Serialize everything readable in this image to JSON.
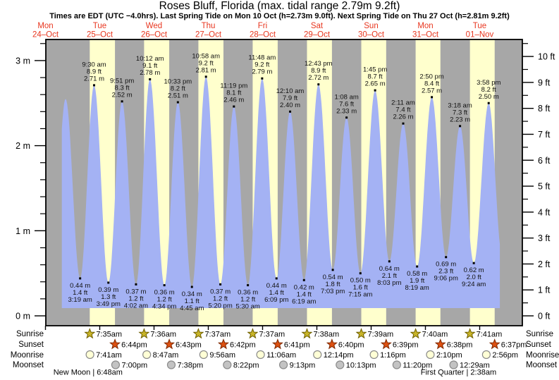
{
  "title": "Roses Bluff, Florida (max. tidal range 2.79m 9.2ft)",
  "subtitle": "Times are EDT (UTC −4.0hrs). Last Spring Tide on Mon 10 Oct (h=2.73m 9.0ft). Next Spring Tide on Thu 27 Oct (h=2.81m 9.2ft)",
  "days": [
    {
      "weekday": "Mon",
      "date": "24–Oct"
    },
    {
      "weekday": "Tue",
      "date": "25–Oct"
    },
    {
      "weekday": "Wed",
      "date": "26–Oct"
    },
    {
      "weekday": "Thu",
      "date": "27–Oct"
    },
    {
      "weekday": "Fri",
      "date": "28–Oct"
    },
    {
      "weekday": "Sat",
      "date": "29–Oct"
    },
    {
      "weekday": "Sun",
      "date": "30–Oct"
    },
    {
      "weekday": "Mon",
      "date": "31–Oct"
    },
    {
      "weekday": "Tue",
      "date": "01–Nov"
    }
  ],
  "chart_data": {
    "type": "area",
    "x_unit": "hours since Mon 24-Oct 00:00 EDT",
    "y_axis_left_labels": [
      "0 m",
      "1 m",
      "2 m",
      "3 m"
    ],
    "y_axis_right_labels": [
      "0 ft",
      "1 ft",
      "2 ft",
      "3 ft",
      "4 ft",
      "5 ft",
      "6 ft",
      "7 ft",
      "8 ft",
      "9 ft",
      "10 ft"
    ],
    "ylim_m": [
      -0.12,
      3.25
    ],
    "high_tides": [
      {
        "time": "9:30 am",
        "ft": "8.9 ft",
        "m_label": "2.71 m",
        "m": 2.71,
        "t": 33.5
      },
      {
        "time": "9:51 pm",
        "ft": "8.3 ft",
        "m_label": "2.52 m",
        "m": 2.52,
        "t": 45.85
      },
      {
        "time": "10:12 am",
        "ft": "9.1 ft",
        "m_label": "2.78 m",
        "m": 2.78,
        "t": 58.2
      },
      {
        "time": "10:33 pm",
        "ft": "8.2 ft",
        "m_label": "2.51 m",
        "m": 2.51,
        "t": 70.55
      },
      {
        "time": "10:58 am",
        "ft": "9.2 ft",
        "m_label": "2.81 m",
        "m": 2.81,
        "t": 82.97
      },
      {
        "time": "11:19 pm",
        "ft": "8.1 ft",
        "m_label": "2.46 m",
        "m": 2.46,
        "t": 95.32
      },
      {
        "time": "11:48 am",
        "ft": "9.2 ft",
        "m_label": "2.79 m",
        "m": 2.79,
        "t": 107.8
      },
      {
        "time": "12:10 am",
        "ft": "7.9 ft",
        "m_label": "2.40 m",
        "m": 2.4,
        "t": 120.17
      },
      {
        "time": "12:43 pm",
        "ft": "8.9 ft",
        "m_label": "2.72 m",
        "m": 2.72,
        "t": 132.72
      },
      {
        "time": "1:08 am",
        "ft": "7.6 ft",
        "m_label": "2.33 m",
        "m": 2.33,
        "t": 145.13
      },
      {
        "time": "1:45 pm",
        "ft": "8.7 ft",
        "m_label": "2.65 m",
        "m": 2.65,
        "t": 157.75
      },
      {
        "time": "2:11 am",
        "ft": "7.4 ft",
        "m_label": "2.26 m",
        "m": 2.26,
        "t": 170.18
      },
      {
        "time": "2:50 pm",
        "ft": "8.4 ft",
        "m_label": "2.57 m",
        "m": 2.57,
        "t": 182.83
      },
      {
        "time": "3:18 am",
        "ft": "7.3 ft",
        "m_label": "2.23 m",
        "m": 2.23,
        "t": 195.3
      },
      {
        "time": "3:58 pm",
        "ft": "8.2 ft",
        "m_label": "2.50 m",
        "m": 2.5,
        "t": 207.97
      }
    ],
    "low_tides": [
      {
        "m_label": "0.44 m",
        "ft": "1.4 ft",
        "time": "3:19 am",
        "m": 0.44,
        "t": 27.32
      },
      {
        "m_label": "0.39 m",
        "ft": "1.3 ft",
        "time": "3:49 pm",
        "m": 0.39,
        "t": 39.82
      },
      {
        "m_label": "0.37 m",
        "ft": "1.2 ft",
        "time": "4:02 am",
        "m": 0.37,
        "t": 52.03
      },
      {
        "m_label": "0.36 m",
        "ft": "1.2 ft",
        "time": "4:34 pm",
        "m": 0.36,
        "t": 64.57
      },
      {
        "m_label": "0.34 m",
        "ft": "1.1 ft",
        "time": "4:45 am",
        "m": 0.34,
        "t": 76.75
      },
      {
        "m_label": "0.37 m",
        "ft": "1.2 ft",
        "time": "5:20 pm",
        "m": 0.37,
        "t": 89.33
      },
      {
        "m_label": "0.36 m",
        "ft": "1.2 ft",
        "time": "5:30 am",
        "m": 0.36,
        "t": 101.5
      },
      {
        "m_label": "0.44 m",
        "ft": "1.4 ft",
        "time": "6:09 pm",
        "m": 0.44,
        "t": 114.15
      },
      {
        "m_label": "0.42 m",
        "ft": "1.4 ft",
        "time": "6:19 am",
        "m": 0.42,
        "t": 126.32
      },
      {
        "m_label": "0.54 m",
        "ft": "1.8 ft",
        "time": "7:03 pm",
        "m": 0.54,
        "t": 139.05
      },
      {
        "m_label": "0.50 m",
        "ft": "1.6 ft",
        "time": "7:15 am",
        "m": 0.5,
        "t": 151.25
      },
      {
        "m_label": "0.64 m",
        "ft": "2.1 ft",
        "time": "8:03 pm",
        "m": 0.64,
        "t": 164.05
      },
      {
        "m_label": "0.58 m",
        "ft": "1.9 ft",
        "time": "8:19 am",
        "m": 0.58,
        "t": 176.32
      },
      {
        "m_label": "0.69 m",
        "ft": "2.3 ft",
        "time": "9:06 pm",
        "m": 0.69,
        "t": 189.1
      },
      {
        "m_label": "0.62 m",
        "ft": "2.0 ft",
        "time": "9:24 am",
        "m": 0.62,
        "t": 201.4
      }
    ],
    "unlabeled_extremes": [
      {
        "t": 14.6,
        "m": 0.37
      },
      {
        "t": 20.9,
        "m": 2.55
      },
      {
        "t": 213.9,
        "m": 0.72
      }
    ],
    "clip": {
      "start": 19.0,
      "end": 213.2
    }
  },
  "sun_moon": {
    "row_labels": [
      "Sunrise",
      "Sunset",
      "Moonrise",
      "Moonset"
    ],
    "sunrise": [
      {
        "time": "7:35am",
        "t": 31.58
      },
      {
        "time": "7:36am",
        "t": 55.6
      },
      {
        "time": "7:37am",
        "t": 79.62
      },
      {
        "time": "7:37am",
        "t": 103.62
      },
      {
        "time": "7:38am",
        "t": 127.63
      },
      {
        "time": "7:39am",
        "t": 151.65
      },
      {
        "time": "7:40am",
        "t": 175.67
      },
      {
        "time": "7:41am",
        "t": 199.68
      }
    ],
    "sunset": [
      {
        "time": "6:44pm",
        "t": 42.73
      },
      {
        "time": "6:43pm",
        "t": 66.72
      },
      {
        "time": "6:42pm",
        "t": 90.7
      },
      {
        "time": "6:41pm",
        "t": 114.68
      },
      {
        "time": "6:40pm",
        "t": 138.67
      },
      {
        "time": "6:39pm",
        "t": 162.65
      },
      {
        "time": "6:38pm",
        "t": 186.63
      },
      {
        "time": "6:37pm",
        "t": 210.62
      }
    ],
    "moonrise": [
      {
        "time": "7:41am",
        "t": 31.68
      },
      {
        "time": "8:47am",
        "t": 56.78
      },
      {
        "time": "9:56am",
        "t": 81.93
      },
      {
        "time": "11:06am",
        "t": 107.1
      },
      {
        "time": "12:14pm",
        "t": 132.23
      },
      {
        "time": "1:16pm",
        "t": 157.27
      },
      {
        "time": "2:10pm",
        "t": 182.17
      },
      {
        "time": "2:56pm",
        "t": 206.93
      }
    ],
    "moonset": [
      {
        "time": "7:00pm",
        "t": 43.0
      },
      {
        "time": "7:38pm",
        "t": 67.63
      },
      {
        "time": "8:22pm",
        "t": 92.37
      },
      {
        "time": "9:13pm",
        "t": 117.22
      },
      {
        "time": "10:13pm",
        "t": 142.22
      },
      {
        "time": "11:20pm",
        "t": 167.33
      },
      {
        "time": "12:29am",
        "t": 192.48
      }
    ],
    "phases": [
      {
        "text": "New Moon | 6:48am",
        "t": 30.8
      },
      {
        "text": "First Quarter | 2:38am",
        "t": 194.63
      }
    ]
  },
  "colors": {
    "night_band": "#a7a7a7",
    "day_band": "#ffffcd",
    "tide_fill": "#a4b2f4",
    "day_label": "#e8361f",
    "sunrise_star": "#c8b428",
    "sunrise_star_border": "#6e5f00",
    "sunset_star": "#dd5010",
    "sunset_star_border": "#7e2800",
    "moonrise_circle": "#ffffd6",
    "moonset_circle": "#c3c3c3",
    "moon_circle_border": "#8a8a8a",
    "annotation_text": "#111111"
  }
}
